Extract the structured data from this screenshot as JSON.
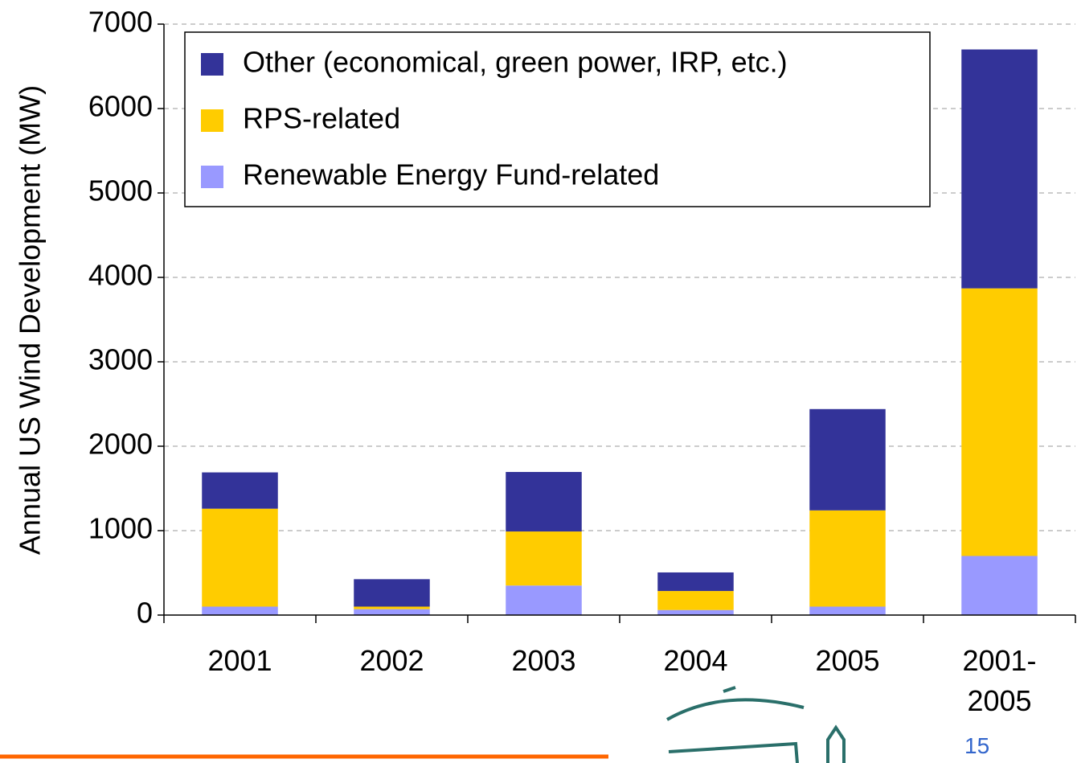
{
  "chart_data": {
    "type": "stacked_bar",
    "y_label": "Annual US Wind Development (MW)",
    "categories": [
      "2001",
      "2002",
      "2003",
      "2004",
      "2005",
      "2001-\n2005"
    ],
    "series": [
      {
        "name": "Renewable Energy Fund-related",
        "color": "#9999ff",
        "values": [
          100,
          70,
          350,
          60,
          100,
          700
        ]
      },
      {
        "name": "RPS-related",
        "color": "#ffcc00",
        "values": [
          1160,
          30,
          640,
          225,
          1140,
          3170
        ]
      },
      {
        "name": "Other (economical, green power, IRP, etc.)",
        "color": "#333399",
        "values": [
          430,
          325,
          705,
          220,
          1200,
          2830
        ]
      }
    ],
    "ylim": [
      0,
      7000
    ],
    "yticks": [
      0,
      1000,
      2000,
      3000,
      4000,
      5000,
      6000,
      7000
    ],
    "grid": true,
    "legend_position": "top-left"
  },
  "page_number": "15"
}
